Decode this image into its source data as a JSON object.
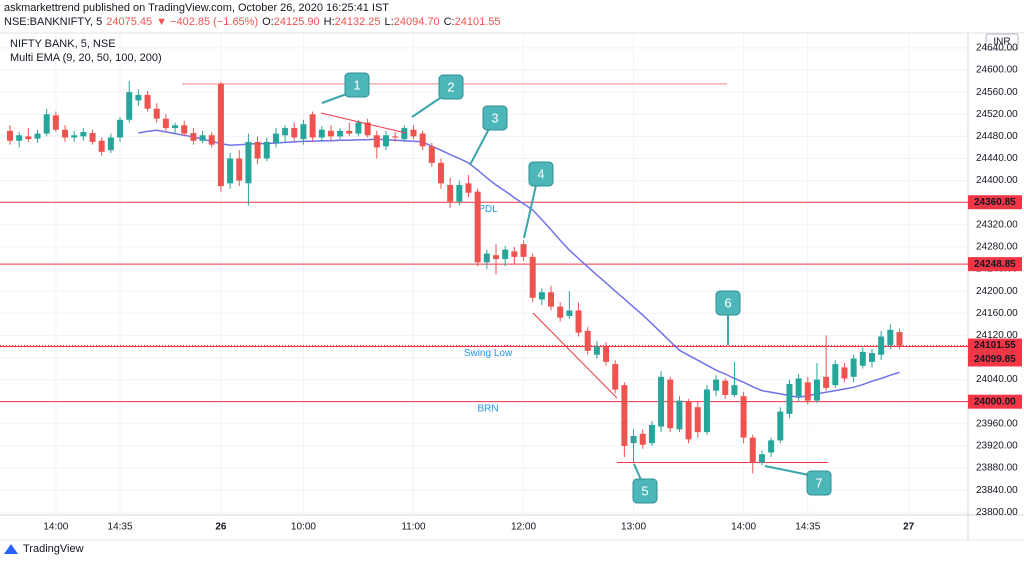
{
  "header": {
    "line1": "askmarkettrend published on TradingView.com, October 26, 2020 16:25:41 IST",
    "symbol": "NSE:BANKNIFTY, 5",
    "last": "24075.45",
    "change": "▼ −402.85 (−1.65%)",
    "ohlc": [
      {
        "label": "O:",
        "value": "24125.90"
      },
      {
        "label": "H:",
        "value": "24132.25"
      },
      {
        "label": "L:",
        "value": "24094.70"
      },
      {
        "label": "C:",
        "value": "24101.55"
      }
    ]
  },
  "footer": "TradingView",
  "chart_data": {
    "type": "candlestick",
    "title": "NIFTY BANK, 5, NSE",
    "currency": "INR",
    "up_color": "#26a69a",
    "down_color": "#ef5350",
    "grid": true,
    "categories": [
      null,
      null,
      null,
      null,
      null,
      "14:00",
      null,
      null,
      null,
      null,
      null,
      null,
      "14:35",
      null,
      null,
      null,
      null,
      null,
      null,
      null,
      null,
      null,
      null,
      "26",
      null,
      null,
      null,
      null,
      null,
      null,
      null,
      null,
      "10:00",
      null,
      null,
      null,
      null,
      null,
      null,
      null,
      null,
      null,
      null,
      null,
      "11:00",
      null,
      null,
      null,
      null,
      null,
      null,
      null,
      null,
      null,
      null,
      null,
      "12:00",
      null,
      null,
      null,
      null,
      null,
      null,
      null,
      null,
      null,
      null,
      null,
      "13:00",
      null,
      null,
      null,
      null,
      null,
      null,
      null,
      null,
      null,
      null,
      null,
      "14:00",
      null,
      null,
      null,
      null,
      null,
      null,
      "14:35",
      null,
      null,
      null,
      null,
      null,
      null,
      null,
      null,
      null,
      null,
      "27"
    ],
    "candles": [
      [
        24490,
        24500,
        24465,
        24472
      ],
      [
        24472,
        24488,
        24460,
        24482
      ],
      [
        24480,
        24495,
        24470,
        24475
      ],
      [
        24476,
        24492,
        24468,
        24485
      ],
      [
        24485,
        24530,
        24480,
        24520
      ],
      [
        24518,
        24525,
        24488,
        24492
      ],
      [
        24492,
        24500,
        24470,
        24478
      ],
      [
        24478,
        24490,
        24470,
        24482
      ],
      [
        24480,
        24495,
        24472,
        24488
      ],
      [
        24486,
        24492,
        24465,
        24470
      ],
      [
        24472,
        24478,
        24445,
        24452
      ],
      [
        24455,
        24485,
        24450,
        24478
      ],
      [
        24478,
        24515,
        24470,
        24510
      ],
      [
        24510,
        24580,
        24505,
        24560
      ],
      [
        24545,
        24565,
        24535,
        24555
      ],
      [
        24555,
        24562,
        24525,
        24530
      ],
      [
        24530,
        24540,
        24505,
        24512
      ],
      [
        24512,
        24520,
        24490,
        24495
      ],
      [
        24495,
        24505,
        24485,
        24500
      ],
      [
        24500,
        24508,
        24480,
        24485
      ],
      [
        24486,
        24495,
        24465,
        24472
      ],
      [
        24472,
        24490,
        24468,
        24482
      ],
      [
        24482,
        24488,
        24460,
        24465
      ],
      [
        24575,
        24578,
        24380,
        24390
      ],
      [
        24395,
        24450,
        24385,
        24440
      ],
      [
        24440,
        24455,
        24390,
        24400
      ],
      [
        24395,
        24485,
        24355,
        24470
      ],
      [
        24470,
        24480,
        24430,
        24440
      ],
      [
        24440,
        24478,
        24435,
        24470
      ],
      [
        24468,
        24495,
        24460,
        24485
      ],
      [
        24482,
        24500,
        24470,
        24495
      ],
      [
        24495,
        24505,
        24470,
        24478
      ],
      [
        24475,
        24510,
        24465,
        24502
      ],
      [
        24520,
        24525,
        24470,
        24478
      ],
      [
        24478,
        24498,
        24470,
        24492
      ],
      [
        24490,
        24500,
        24472,
        24480
      ],
      [
        24480,
        24495,
        24475,
        24490
      ],
      [
        24490,
        24505,
        24480,
        24485
      ],
      [
        24485,
        24510,
        24480,
        24505
      ],
      [
        24505,
        24512,
        24478,
        24482
      ],
      [
        24482,
        24490,
        24440,
        24460
      ],
      [
        24462,
        24490,
        24455,
        24482
      ],
      [
        24480,
        24488,
        24470,
        24478
      ],
      [
        24475,
        24500,
        24470,
        24495
      ],
      [
        24492,
        24500,
        24475,
        24480
      ],
      [
        24485,
        24490,
        24455,
        24462
      ],
      [
        24462,
        24468,
        24425,
        24432
      ],
      [
        24432,
        24440,
        24385,
        24395
      ],
      [
        24392,
        24405,
        24350,
        24362
      ],
      [
        24362,
        24400,
        24355,
        24392
      ],
      [
        24395,
        24410,
        24370,
        24378
      ],
      [
        24380,
        24385,
        24245,
        24252
      ],
      [
        24252,
        24275,
        24240,
        24268
      ],
      [
        24265,
        24285,
        24230,
        24258
      ],
      [
        24258,
        24282,
        24245,
        24275
      ],
      [
        24272,
        24280,
        24250,
        24262
      ],
      [
        24285,
        24292,
        24255,
        24262
      ],
      [
        24262,
        24268,
        24180,
        24188
      ],
      [
        24185,
        24205,
        24175,
        24198
      ],
      [
        24198,
        24210,
        24165,
        24172
      ],
      [
        24172,
        24180,
        24145,
        24152
      ],
      [
        24155,
        24200,
        24150,
        24165
      ],
      [
        24165,
        24180,
        24118,
        24125
      ],
      [
        24128,
        24135,
        24085,
        24092
      ],
      [
        24085,
        24110,
        24078,
        24100
      ],
      [
        24100,
        24108,
        24065,
        24072
      ],
      [
        24068,
        24075,
        24015,
        24022
      ],
      [
        24030,
        24035,
        23900,
        23920
      ],
      [
        23925,
        23950,
        23890,
        23938
      ],
      [
        23942,
        23950,
        23915,
        23922
      ],
      [
        23925,
        23965,
        23920,
        23958
      ],
      [
        23955,
        24055,
        23945,
        24045
      ],
      [
        24040,
        24045,
        23945,
        23952
      ],
      [
        23950,
        24010,
        23945,
        24002
      ],
      [
        24000,
        24005,
        23925,
        23932
      ],
      [
        23990,
        24000,
        23935,
        23945
      ],
      [
        23945,
        24030,
        23940,
        24022
      ],
      [
        24020,
        24048,
        24010,
        24040
      ],
      [
        24038,
        24042,
        24005,
        24012
      ],
      [
        24012,
        24072,
        24008,
        24030
      ],
      [
        24010,
        24018,
        23925,
        23935
      ],
      [
        23935,
        23940,
        23870,
        23890
      ],
      [
        23890,
        23912,
        23885,
        23905
      ],
      [
        23908,
        23935,
        23900,
        23930
      ],
      [
        23930,
        23990,
        23925,
        23982
      ],
      [
        23978,
        24040,
        23970,
        24032
      ],
      [
        24010,
        24050,
        24000,
        24042
      ],
      [
        24035,
        24045,
        23995,
        24002
      ],
      [
        24002,
        24070,
        23998,
        24040
      ],
      [
        24045,
        24120,
        24020,
        24025
      ],
      [
        24030,
        24075,
        24025,
        24068
      ],
      [
        24062,
        24070,
        24035,
        24042
      ],
      [
        24045,
        24085,
        24035,
        24078
      ],
      [
        24065,
        24098,
        24060,
        24090
      ],
      [
        24072,
        24095,
        24062,
        24088
      ],
      [
        24085,
        24128,
        24075,
        24118
      ],
      [
        24102,
        24140,
        24095,
        24130
      ],
      [
        24125.9,
        24132.25,
        24094.7,
        24101.55
      ],
      null
    ],
    "ema": {
      "name": "Multi EMA (9, 20, 50, 100, 200)",
      "color": "#7072e8",
      "values": [
        null,
        null,
        null,
        null,
        null,
        null,
        null,
        null,
        null,
        null,
        null,
        null,
        null,
        null,
        24486,
        24489,
        24491,
        24488,
        24485,
        24482,
        24479,
        24475,
        24471,
        24467,
        24464,
        24465,
        24466,
        24467,
        24467,
        24468,
        24469,
        24470,
        24471,
        24471,
        24472,
        24472,
        24473,
        24473,
        24474,
        24474,
        24475,
        24474,
        24473,
        24472,
        24471,
        24470,
        24462,
        24455,
        24447,
        24440,
        24432,
        24419,
        24405,
        24392,
        24381,
        24369,
        24358,
        24347,
        24329,
        24311,
        24292,
        24274,
        24259,
        24244,
        24229,
        24215,
        24200,
        24186,
        24171,
        24157,
        24141,
        24125,
        24109,
        24093,
        24084,
        24075,
        24066,
        24057,
        24050,
        24042,
        24035,
        24027,
        24020,
        24017,
        24014,
        24011,
        24008,
        24011,
        24014,
        24017,
        24020,
        24023,
        24026,
        24031,
        24037,
        24042,
        24048,
        24053,
        null
      ]
    },
    "ylim": [
      23795,
      24667
    ],
    "yticks": [
      {
        "value": 23800,
        "label": "23800.00"
      },
      {
        "value": 23840,
        "label": "23840.00"
      },
      {
        "value": 23880,
        "label": "23880.00"
      },
      {
        "value": 23920,
        "label": "23920.00"
      },
      {
        "value": 23960,
        "label": "23960.00"
      },
      {
        "value": 24000,
        "label": "24000.00"
      },
      {
        "value": 24040,
        "label": "24040.00"
      },
      {
        "value": 24080,
        "label": "24080.00"
      },
      {
        "value": 24120,
        "label": "24120.00"
      },
      {
        "value": 24160,
        "label": "24160.00"
      },
      {
        "value": 24200,
        "label": "24200.00"
      },
      {
        "value": 24240,
        "label": "24240.00"
      },
      {
        "value": 24280,
        "label": "24280.00"
      },
      {
        "value": 24320,
        "label": "24320.00"
      },
      {
        "value": 24360,
        "label": "24360.00"
      },
      {
        "value": 24400,
        "label": "24400.00"
      },
      {
        "value": 24440,
        "label": "24440.00"
      },
      {
        "value": 24480,
        "label": "24480.00"
      },
      {
        "value": 24520,
        "label": "24520.00"
      },
      {
        "value": 24560,
        "label": "24560.00"
      },
      {
        "value": 24600,
        "label": "24600.00"
      },
      {
        "value": 24640,
        "label": "24640.00"
      }
    ],
    "level_color": "#f23645",
    "levels": [
      {
        "price": 24360.85,
        "note": "PDL"
      },
      {
        "price": 24248.85
      },
      {
        "price": 24101.55,
        "style": "dotted"
      },
      {
        "price": 24099.85,
        "note": "Swing Low"
      },
      {
        "price": {
          "value": 24000,
          "label": "24000.00"
        },
        "note": "BRN"
      }
    ],
    "lines": [
      24575,
      23890
    ],
    "callouts": [
      "1",
      "2",
      "3",
      "4",
      "5",
      "6",
      "7"
    ]
  }
}
